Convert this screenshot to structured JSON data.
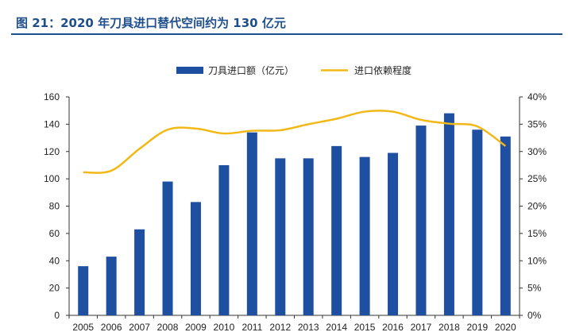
{
  "figure": {
    "title": "图 21：2020 年刀具进口替代空间约为 130 亿元"
  },
  "colors": {
    "title": "#1f4e8c",
    "bar": "#1e4fa0",
    "line": "#f2b817"
  },
  "chart_data": {
    "type": "bar",
    "categories": [
      "2005",
      "2006",
      "2007",
      "2008",
      "2009",
      "2010",
      "2011",
      "2012",
      "2013",
      "2014",
      "2015",
      "2016",
      "2017",
      "2018",
      "2019",
      "2020"
    ],
    "series": [
      {
        "name": "刀具进口额（亿元）",
        "type": "bar",
        "axis": "left",
        "values": [
          36,
          43,
          63,
          98,
          83,
          110,
          134,
          115,
          115,
          124,
          116,
          119,
          139,
          148,
          136,
          131
        ]
      },
      {
        "name": "进口依赖程度",
        "type": "line",
        "axis": "right",
        "values": [
          26.2,
          26.5,
          30.5,
          34.0,
          34.2,
          33.3,
          33.8,
          33.9,
          35.0,
          36.0,
          37.3,
          37.3,
          35.8,
          35.1,
          34.6,
          31.0
        ]
      }
    ],
    "y_left": {
      "min": 0,
      "max": 160,
      "step": 20,
      "ticks": [
        "0",
        "20",
        "40",
        "60",
        "80",
        "100",
        "120",
        "140",
        "160"
      ]
    },
    "y_right": {
      "min": 0,
      "max": 40,
      "step": 5,
      "ticks": [
        "0%",
        "5%",
        "10%",
        "15%",
        "20%",
        "25%",
        "30%",
        "35%",
        "40%"
      ]
    },
    "legend": {
      "placement": "top-center",
      "items": [
        "刀具进口额（亿元）",
        "进口依赖程度"
      ]
    },
    "grid": false
  }
}
